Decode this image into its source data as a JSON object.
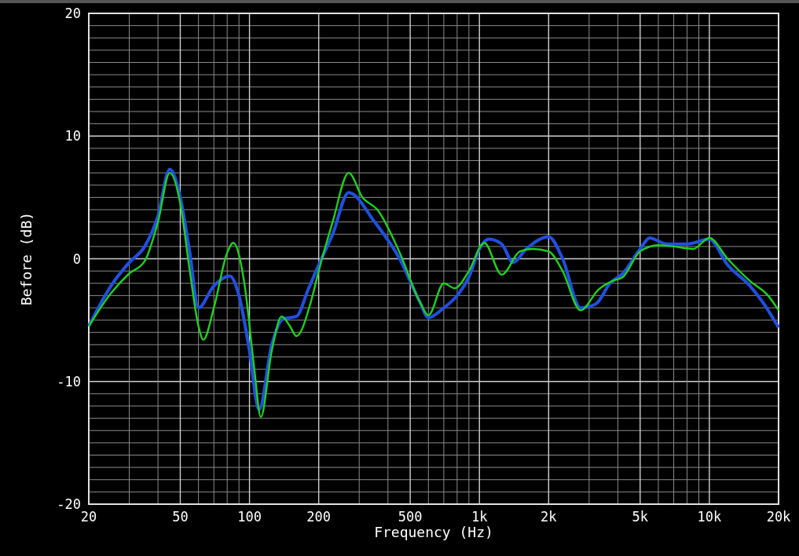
{
  "chart_data": {
    "type": "line",
    "xlabel": "Frequency (Hz)",
    "ylabel": "Before (dB)",
    "log": "x",
    "grid": true,
    "xlim": [
      20,
      20000
    ],
    "ylim": [
      -20,
      20
    ],
    "xticks": [
      {
        "value": 20,
        "label": "20"
      },
      {
        "value": 30,
        "label": null
      },
      {
        "value": 40,
        "label": null
      },
      {
        "value": 50,
        "label": "50"
      },
      {
        "value": 60,
        "label": null
      },
      {
        "value": 70,
        "label": null
      },
      {
        "value": 80,
        "label": null
      },
      {
        "value": 90,
        "label": null
      },
      {
        "value": 100,
        "label": "100"
      },
      {
        "value": 200,
        "label": "200"
      },
      {
        "value": 300,
        "label": null
      },
      {
        "value": 400,
        "label": null
      },
      {
        "value": 500,
        "label": "500"
      },
      {
        "value": 600,
        "label": null
      },
      {
        "value": 700,
        "label": null
      },
      {
        "value": 800,
        "label": null
      },
      {
        "value": 900,
        "label": null
      },
      {
        "value": 1000,
        "label": "1k"
      },
      {
        "value": 2000,
        "label": "2k"
      },
      {
        "value": 3000,
        "label": null
      },
      {
        "value": 4000,
        "label": null
      },
      {
        "value": 5000,
        "label": "5k"
      },
      {
        "value": 6000,
        "label": null
      },
      {
        "value": 7000,
        "label": null
      },
      {
        "value": 8000,
        "label": null
      },
      {
        "value": 9000,
        "label": null
      },
      {
        "value": 10000,
        "label": "10k"
      },
      {
        "value": 20000,
        "label": "20k"
      }
    ],
    "yticks": [
      -20,
      {
        "value": -19,
        "label": null
      },
      {
        "value": -18,
        "label": null
      },
      {
        "value": -17,
        "label": null
      },
      {
        "value": -16,
        "label": null
      },
      {
        "value": -15,
        "label": null
      },
      {
        "value": -14,
        "label": null
      },
      {
        "value": -13,
        "label": null
      },
      {
        "value": -12,
        "label": null
      },
      {
        "value": -11,
        "label": null
      },
      -10,
      {
        "value": -9,
        "label": null
      },
      {
        "value": -8,
        "label": null
      },
      {
        "value": -7,
        "label": null
      },
      {
        "value": -6,
        "label": null
      },
      {
        "value": -5,
        "label": null
      },
      {
        "value": -4,
        "label": null
      },
      {
        "value": -3,
        "label": null
      },
      {
        "value": -2,
        "label": null
      },
      {
        "value": -1,
        "label": null
      },
      0,
      {
        "value": 1,
        "label": null
      },
      {
        "value": 2,
        "label": null
      },
      {
        "value": 3,
        "label": null
      },
      {
        "value": 4,
        "label": null
      },
      {
        "value": 5,
        "label": null
      },
      {
        "value": 6,
        "label": null
      },
      {
        "value": 7,
        "label": null
      },
      {
        "value": 8,
        "label": null
      },
      {
        "value": 9,
        "label": null
      },
      10,
      {
        "value": 11,
        "label": null
      },
      {
        "value": 12,
        "label": null
      },
      {
        "value": 13,
        "label": null
      },
      {
        "value": 14,
        "label": null
      },
      {
        "value": 15,
        "label": null
      },
      {
        "value": 16,
        "label": null
      },
      {
        "value": 17,
        "label": null
      },
      {
        "value": 18,
        "label": null
      },
      {
        "value": 19,
        "label": null
      },
      20
    ],
    "series": [
      {
        "color": "#2050e0",
        "x": [
          20,
          25,
          30,
          35,
          40,
          45,
          50,
          55,
          60,
          70,
          82,
          90,
          100,
          110,
          125,
          140,
          160,
          180,
          200,
          230,
          270,
          350,
          450,
          550,
          600,
          700,
          800,
          900,
          1000,
          1100,
          1250,
          1400,
          1600,
          2000,
          2300,
          2750,
          3200,
          3700,
          4200,
          5000,
          5500,
          6500,
          8000,
          10000,
          12000,
          15000,
          17000,
          20000
        ],
        "values": [
          -5.5,
          -2.2,
          -0.3,
          1,
          3.5,
          7.3,
          5,
          0.5,
          -4,
          -2.2,
          -1.4,
          -3,
          -7.5,
          -12.3,
          -7,
          -4.9,
          -4.7,
          -2.5,
          -0.5,
          2,
          5.4,
          3,
          0,
          -3.5,
          -4.8,
          -4,
          -3,
          -1.5,
          0.8,
          1.6,
          1.2,
          -0.3,
          0.8,
          1.8,
          0,
          -4,
          -3.7,
          -2,
          -1.2,
          0.8,
          1.7,
          1.2,
          1.2,
          1.6,
          -0.5,
          -2.2,
          -3.5,
          -5.6
        ]
      },
      {
        "color": "#20d020",
        "x": [
          20,
          25,
          30,
          35,
          40,
          45,
          50,
          55,
          60,
          63,
          70,
          80,
          85,
          95,
          105,
          112,
          125,
          138,
          150,
          160,
          185,
          200,
          230,
          270,
          310,
          360,
          450,
          550,
          600,
          700,
          780,
          900,
          1050,
          1250,
          1500,
          1700,
          2000,
          2300,
          2750,
          3300,
          3800,
          4200,
          5000,
          6000,
          7000,
          8500,
          10000,
          12000,
          15000,
          18000,
          20000
        ],
        "values": [
          -5.5,
          -2.8,
          -1.2,
          -0.2,
          3,
          7,
          4.5,
          -1,
          -5.5,
          -6.6,
          -4,
          0.5,
          1.3,
          -2,
          -9,
          -12.9,
          -7.5,
          -4.7,
          -5.5,
          -6.3,
          -3.5,
          -1,
          3,
          7,
          5,
          4,
          0.5,
          -3.5,
          -4.6,
          -2,
          -2.4,
          -1,
          1.3,
          -1.3,
          0.6,
          0.8,
          0.6,
          -1,
          -4.2,
          -2.5,
          -1.8,
          -1.5,
          0.6,
          1.1,
          1,
          0.8,
          1.7,
          0,
          -1.8,
          -3,
          -4.2
        ]
      }
    ]
  }
}
